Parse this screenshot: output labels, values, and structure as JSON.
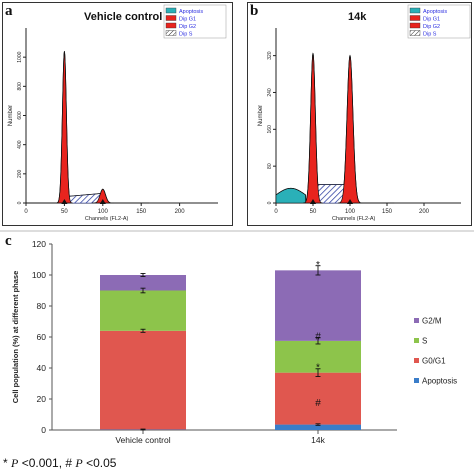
{
  "panels": {
    "a": {
      "letter": "a",
      "title": "Vehicle control"
    },
    "b": {
      "letter": "b",
      "title": "14k"
    },
    "c": {
      "letter": "c"
    }
  },
  "footnote": {
    "star": "*",
    "p1": "P",
    "t1": " <0.001, # ",
    "p2": "P",
    "t2": " <0.05"
  },
  "chart_data": [
    {
      "type": "line",
      "panel": "a",
      "title": "Vehicle control",
      "xlabel": "Channels (FL2-A)",
      "ylabel": "Number",
      "xlim": [
        0,
        250
      ],
      "ylim": [
        0,
        1200
      ],
      "x_ticks": [
        0,
        50,
        100,
        150,
        200
      ],
      "y_ticks": [
        0,
        200,
        400,
        600,
        800,
        1000
      ],
      "legend": [
        "Apoptosis",
        "Dip G1",
        "Dip G2",
        "Dip S"
      ],
      "legend_position": "top-right",
      "markers_x": [
        50,
        100
      ],
      "peaks": [
        {
          "name": "Dip G1",
          "center": 50,
          "height": 1040,
          "width": 2.6
        },
        {
          "name": "Dip G2",
          "center": 100,
          "height": 95,
          "width": 3.5
        }
      ],
      "s_phase": {
        "start": 53,
        "end": 97,
        "level_start": 45,
        "level_end": 65
      }
    },
    {
      "type": "line",
      "panel": "b",
      "title": "14k",
      "xlabel": "Channels (FL2-A)",
      "ylabel": "Number",
      "xlim": [
        0,
        250
      ],
      "ylim": [
        0,
        380
      ],
      "x_ticks": [
        0,
        50,
        100,
        150,
        200
      ],
      "y_ticks": [
        0,
        80,
        160,
        240,
        320
      ],
      "legend": [
        "Apoptosis",
        "Dip G1",
        "Dip G2",
        "Dip S"
      ],
      "legend_position": "top-right",
      "markers_x": [
        50,
        100
      ],
      "peaks": [
        {
          "name": "Dip G1",
          "center": 50,
          "height": 325,
          "width": 3.2
        },
        {
          "name": "Dip G2",
          "center": 100,
          "height": 320,
          "width": 4.0
        }
      ],
      "apoptosis": {
        "start": 0,
        "end": 40,
        "level": 32
      },
      "s_phase": {
        "start": 54,
        "end": 96,
        "level_start": 40,
        "level_end": 40
      }
    },
    {
      "type": "bar",
      "stacked": true,
      "panel": "c",
      "ylabel": "Cell population (%) at different phase",
      "ylim": [
        0,
        120
      ],
      "y_ticks": [
        0,
        20,
        40,
        60,
        80,
        100,
        120
      ],
      "categories": [
        "Vehicle control",
        "14k"
      ],
      "series": [
        {
          "name": "Apoptosis",
          "color": "#3a7dc9",
          "values": [
            0.3,
            3.5
          ]
        },
        {
          "name": "G0/G1",
          "color": "#e0574f",
          "values": [
            63.7,
            33.5
          ]
        },
        {
          "name": "S",
          "color": "#8dc44b",
          "values": [
            26,
            20.5
          ]
        },
        {
          "name": "G2/M",
          "color": "#8c6bb5",
          "values": [
            10,
            45.5
          ]
        }
      ],
      "error_bars": [
        {
          "category": "Vehicle control",
          "y": [
            0.3,
            64,
            90,
            100
          ],
          "err": [
            0.3,
            1,
            1.5,
            1
          ]
        },
        {
          "category": "14k",
          "y": [
            3.5,
            37,
            57.5,
            103
          ],
          "err": [
            0.5,
            2.5,
            2,
            3
          ]
        }
      ],
      "annotations": [
        {
          "category": "14k",
          "y": 18,
          "text": "#"
        },
        {
          "category": "14k",
          "y": 41,
          "text": "*"
        },
        {
          "category": "14k",
          "y": 61,
          "text": "#"
        },
        {
          "category": "14k",
          "y": 107,
          "text": "*"
        }
      ],
      "legend_order": [
        "G2/M",
        "S",
        "G0/G1",
        "Apoptosis"
      ],
      "legend_position": "right"
    }
  ],
  "colors": {
    "apoptosis_fill": "#2ab0b8",
    "g1_fill": "#e8241e",
    "g2_fill": "#e8241e",
    "s_hatch": "#1d2f9a",
    "legend_text": "#2b2ee0",
    "axis": "#222222"
  }
}
